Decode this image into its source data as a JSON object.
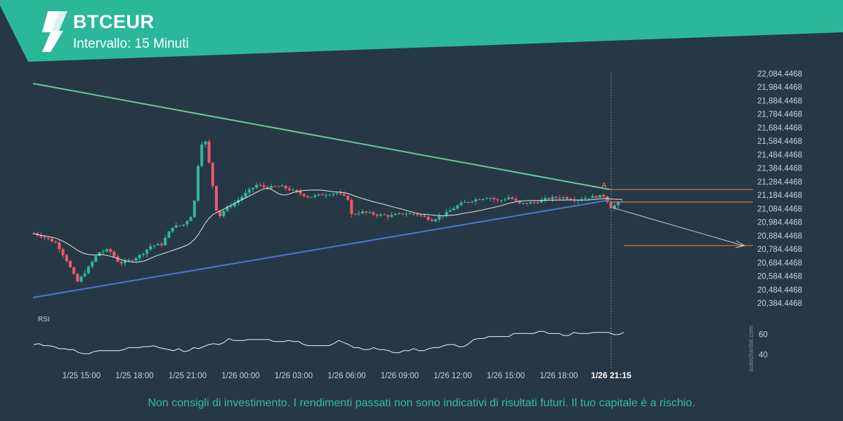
{
  "header": {
    "symbol": "BTCEUR",
    "interval": "Intervallo: 15 Minuti"
  },
  "colors": {
    "brand": "#2bb89a",
    "background": "#263846",
    "up_candle": "#2fb89a",
    "down_candle": "#f0596a",
    "resistance_line": "#6cc79a",
    "support_line": "#4a78c8",
    "level_line": "#f08a4b",
    "moving_average": "#e6e6e6",
    "rsi_line": "#f2f2f2"
  },
  "chart_data": {
    "type": "candlestick",
    "y_axis": {
      "ticks": [
        "22,084.4468",
        "21,984.4468",
        "21,884.4468",
        "21,784.4468",
        "21,684.4468",
        "21,584.4468",
        "21,484.4468",
        "21,384.4468",
        "21,284.4468",
        "21,184.4468",
        "21,084.4468",
        "20,984.4468",
        "20,884.4468",
        "20,784.4468",
        "20,684.4468",
        "20,584.4468",
        "20,484.4468",
        "20,384.4468"
      ],
      "range": [
        20384.4468,
        22084.4468
      ]
    },
    "x_axis": {
      "ticks": [
        "1/25 15:00",
        "1/25 18:00",
        "1/25 21:00",
        "1/26 00:00",
        "1/26 03:00",
        "1/26 06:00",
        "1/26 09:00",
        "1/26 12:00",
        "1/26 15:00",
        "1/26 18:00"
      ],
      "current_label": "1/26 21:15"
    },
    "pattern_marker": "A",
    "rsi": {
      "label": "RSI",
      "ticks": [
        "60",
        "40"
      ],
      "range": [
        30,
        75
      ],
      "values": [
        50,
        51,
        49,
        49,
        48,
        46,
        46,
        45,
        45,
        42,
        41,
        41,
        43,
        44,
        44,
        44,
        44,
        44,
        45,
        47,
        47,
        47,
        48,
        48,
        49,
        47,
        46,
        45,
        44,
        46,
        43,
        44,
        47,
        46,
        48,
        50,
        51,
        50,
        52,
        56,
        54,
        54,
        54,
        55,
        55,
        55,
        55,
        55,
        53,
        53,
        53,
        54,
        53,
        53,
        50,
        49,
        49,
        49,
        49,
        49,
        51,
        54,
        52,
        50,
        47,
        47,
        45,
        45,
        47,
        45,
        45,
        44,
        42,
        42,
        44,
        44,
        46,
        44,
        44,
        46,
        47,
        47,
        49,
        50,
        50,
        48,
        48,
        51,
        55,
        56,
        56,
        58,
        58,
        58,
        58,
        58,
        61,
        61,
        61,
        61,
        61,
        63,
        63,
        61,
        61,
        61,
        59,
        59,
        62,
        61,
        61,
        61,
        62,
        62,
        62,
        62,
        60,
        60,
        62
      ]
    },
    "annotations_watermark": "autochartist.com"
  },
  "footer": {
    "disclaimer": "Non consigli di investimento. I rendimenti passati non sono indicativi di risultati futuri. Il tuo capitale è a rischio."
  }
}
